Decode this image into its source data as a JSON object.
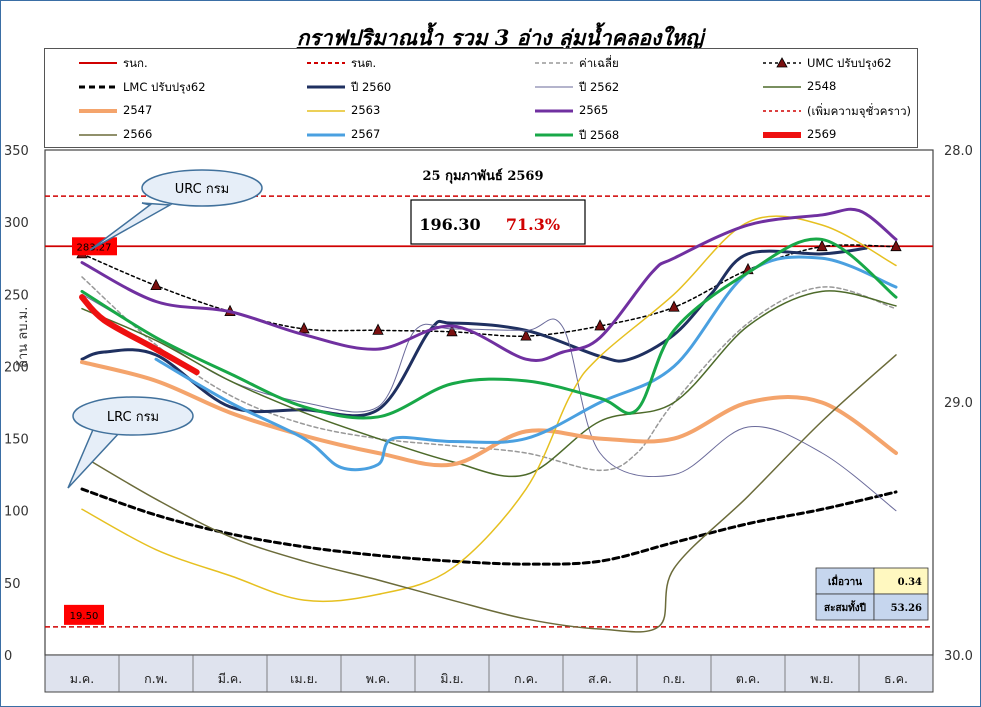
{
  "title": "กราฟปริมาณน้ำ รวม 3 อ่าง ลุ่มน้ำคลองใหญ่",
  "legend": [
    {
      "name": "รนก.",
      "color": "#d00000",
      "dash": "",
      "width": 2,
      "marker": ""
    },
    {
      "name": "รนต.",
      "color": "#d00000",
      "dash": "4,3",
      "width": 2,
      "marker": ""
    },
    {
      "name": "ค่าเฉลี่ย",
      "color": "#999999",
      "dash": "4,3",
      "width": 1.5,
      "marker": ""
    },
    {
      "name": "UMC ปรับปรุง62",
      "color": "#000000",
      "dash": "3,3",
      "width": 1.5,
      "marker": "triangle"
    },
    {
      "name": "LMC ปรับปรุง62",
      "color": "#000000",
      "dash": "6,4",
      "width": 3,
      "marker": ""
    },
    {
      "name": "ปี 2560",
      "color": "#1f3060",
      "dash": "",
      "width": 3,
      "marker": ""
    },
    {
      "name": "ปี 2562",
      "color": "#6a6a9a",
      "dash": "",
      "width": 1,
      "marker": ""
    },
    {
      "name": "2548",
      "color": "#4d6a2a",
      "dash": "",
      "width": 1.5,
      "marker": ""
    },
    {
      "name": "2547",
      "color": "#f4a46c",
      "dash": "",
      "width": 4,
      "marker": ""
    },
    {
      "name": "2563",
      "color": "#e6c020",
      "dash": "",
      "width": 1.5,
      "marker": ""
    },
    {
      "name": "2565",
      "color": "#7030a0",
      "dash": "",
      "width": 3,
      "marker": ""
    },
    {
      "name": "(เพิ่มความจุชั่วคราว)",
      "color": "#d00000",
      "dash": "3,3",
      "width": 1.5,
      "marker": ""
    },
    {
      "name": "2566",
      "color": "#6b6b3a",
      "dash": "",
      "width": 1.5,
      "marker": ""
    },
    {
      "name": "2567",
      "color": "#4aa0e0",
      "dash": "",
      "width": 3,
      "marker": ""
    },
    {
      "name": "ปี 2568",
      "color": "#18a848",
      "dash": "",
      "width": 3,
      "marker": ""
    },
    {
      "name": "2569",
      "color": "#ee1010",
      "dash": "",
      "width": 6,
      "marker": ""
    }
  ],
  "annotations": {
    "date": "25 กุมภาพันธ์ 2569",
    "volume": "196.30",
    "percent": "71.3%",
    "urc": "URC กรม",
    "lrc": "LRC กรม",
    "upper_label": "283.27",
    "lower_label": "19.50",
    "ylabel_left": "ล้าน ลบ.ม.",
    "table": [
      {
        "label": "เมื่อวาน",
        "value": "0.34"
      },
      {
        "label": "สะสมทั้งปี",
        "value": "53.26"
      }
    ]
  },
  "chart_data": {
    "type": "line",
    "categories": [
      "ม.ค.",
      "ก.พ.",
      "มี.ค.",
      "เม.ย.",
      "พ.ค.",
      "มิ.ย.",
      "ก.ค.",
      "ส.ค.",
      "ก.ย.",
      "ต.ค.",
      "พ.ย.",
      "ธ.ค."
    ],
    "y_left": {
      "min": 0,
      "max": 350,
      "ticks": [
        0,
        50,
        100,
        150,
        200,
        250,
        300,
        350
      ]
    },
    "y_right": {
      "ticks": [
        "28.0",
        "29.0",
        "30.0"
      ]
    },
    "grid": false,
    "reference_lines": {
      "upper_rule": 283.27,
      "lower_rule": 19.5,
      "temporary_capacity": 318
    },
    "series": [
      {
        "name": "ค่าเฉลี่ย",
        "color": "#999999",
        "dash": "4,3",
        "width": 1.5,
        "values": [
          [
            0,
            262
          ],
          [
            1,
            215
          ],
          [
            2,
            180
          ],
          [
            3,
            160
          ],
          [
            4,
            150
          ],
          [
            5,
            145
          ],
          [
            6,
            140
          ],
          [
            7,
            128
          ],
          [
            7.5,
            140
          ],
          [
            8,
            175
          ],
          [
            9,
            230
          ],
          [
            10,
            255
          ],
          [
            11,
            240
          ]
        ]
      },
      {
        "name": "UMC ปรับปรุง62",
        "color": "#000000",
        "dash": "3,3",
        "width": 1.5,
        "marker": "triangle",
        "values": [
          [
            0,
            278
          ],
          [
            1,
            256
          ],
          [
            2,
            238
          ],
          [
            3,
            226
          ],
          [
            4,
            225
          ],
          [
            5,
            224
          ],
          [
            6,
            221
          ],
          [
            7,
            228
          ],
          [
            8,
            241
          ],
          [
            9,
            267
          ],
          [
            10,
            283
          ],
          [
            11,
            283
          ]
        ]
      },
      {
        "name": "LMC ปรับปรุง62",
        "color": "#000000",
        "dash": "6,4",
        "width": 3,
        "values": [
          [
            0,
            115
          ],
          [
            1,
            97
          ],
          [
            2,
            84
          ],
          [
            3,
            75
          ],
          [
            4,
            69
          ],
          [
            5,
            65
          ],
          [
            6,
            63
          ],
          [
            7,
            65
          ],
          [
            8,
            78
          ],
          [
            9,
            91
          ],
          [
            10,
            101
          ],
          [
            11,
            113
          ]
        ]
      },
      {
        "name": "ปี 2560",
        "color": "#1f3060",
        "width": 3,
        "values": [
          [
            0,
            205
          ],
          [
            0.3,
            210
          ],
          [
            1,
            208
          ],
          [
            2,
            172
          ],
          [
            3,
            170
          ],
          [
            4,
            170
          ],
          [
            4.7,
            225
          ],
          [
            5,
            230
          ],
          [
            6,
            225
          ],
          [
            7,
            207
          ],
          [
            7.4,
            205
          ],
          [
            8,
            222
          ],
          [
            8.5,
            250
          ],
          [
            9,
            278
          ],
          [
            10,
            278
          ],
          [
            10.6,
            282
          ]
        ]
      },
      {
        "name": "ปี 2562",
        "color": "#6a6a9a",
        "width": 1,
        "values": [
          [
            0,
            250
          ],
          [
            1,
            220
          ],
          [
            2,
            190
          ],
          [
            3,
            175
          ],
          [
            4,
            172
          ],
          [
            4.5,
            225
          ],
          [
            5,
            226
          ],
          [
            6,
            225
          ],
          [
            6.5,
            227
          ],
          [
            7,
            140
          ],
          [
            8,
            125
          ],
          [
            9,
            158
          ],
          [
            10,
            140
          ],
          [
            11,
            100
          ]
        ]
      },
      {
        "name": "2548",
        "color": "#4d6a2a",
        "width": 1.5,
        "values": [
          [
            0,
            240
          ],
          [
            1,
            218
          ],
          [
            2,
            190
          ],
          [
            3,
            168
          ],
          [
            4,
            150
          ],
          [
            5,
            134
          ],
          [
            6,
            125
          ],
          [
            7,
            162
          ],
          [
            8,
            175
          ],
          [
            9,
            228
          ],
          [
            10,
            252
          ],
          [
            11,
            242
          ]
        ]
      },
      {
        "name": "2547",
        "color": "#f4a46c",
        "width": 4,
        "values": [
          [
            0,
            203
          ],
          [
            1,
            190
          ],
          [
            2,
            168
          ],
          [
            3,
            152
          ],
          [
            4,
            140
          ],
          [
            5,
            132
          ],
          [
            6,
            155
          ],
          [
            7,
            150
          ],
          [
            8,
            150
          ],
          [
            9,
            175
          ],
          [
            10,
            175
          ],
          [
            11,
            140
          ]
        ]
      },
      {
        "name": "2563",
        "color": "#e6c020",
        "width": 1.5,
        "values": [
          [
            0,
            101
          ],
          [
            1,
            73
          ],
          [
            2,
            55
          ],
          [
            3,
            38
          ],
          [
            4,
            42
          ],
          [
            5,
            60
          ],
          [
            6,
            115
          ],
          [
            6.6,
            180
          ],
          [
            7,
            207
          ],
          [
            8,
            250
          ],
          [
            9,
            300
          ],
          [
            10,
            298
          ],
          [
            11,
            270
          ]
        ]
      },
      {
        "name": "2565",
        "color": "#7030a0",
        "width": 3,
        "values": [
          [
            0,
            272
          ],
          [
            1,
            245
          ],
          [
            2,
            238
          ],
          [
            3,
            222
          ],
          [
            4,
            212
          ],
          [
            5,
            228
          ],
          [
            6,
            205
          ],
          [
            6.5,
            210
          ],
          [
            7,
            220
          ],
          [
            7.7,
            265
          ],
          [
            8,
            275
          ],
          [
            9,
            298
          ],
          [
            10,
            305
          ],
          [
            10.5,
            308
          ],
          [
            11,
            288
          ]
        ]
      },
      {
        "name": "2566",
        "color": "#6b6b3a",
        "width": 1.5,
        "values": [
          [
            0,
            138
          ],
          [
            1,
            108
          ],
          [
            2,
            82
          ],
          [
            3,
            65
          ],
          [
            4,
            52
          ],
          [
            5,
            38
          ],
          [
            6,
            25
          ],
          [
            7,
            18
          ],
          [
            7.8,
            20
          ],
          [
            8,
            60
          ],
          [
            9,
            110
          ],
          [
            10,
            162
          ],
          [
            11,
            208
          ]
        ]
      },
      {
        "name": "2567",
        "color": "#4aa0e0",
        "width": 3,
        "values": [
          [
            1,
            205
          ],
          [
            2,
            175
          ],
          [
            3,
            150
          ],
          [
            3.5,
            130
          ],
          [
            4,
            132
          ],
          [
            4.2,
            150
          ],
          [
            5,
            148
          ],
          [
            6,
            150
          ],
          [
            7,
            175
          ],
          [
            8,
            200
          ],
          [
            9,
            265
          ],
          [
            10,
            275
          ],
          [
            11,
            255
          ]
        ]
      },
      {
        "name": "ปี 2568",
        "color": "#18a848",
        "width": 3,
        "values": [
          [
            0,
            252
          ],
          [
            1,
            220
          ],
          [
            2,
            195
          ],
          [
            3,
            172
          ],
          [
            4,
            165
          ],
          [
            5,
            188
          ],
          [
            6,
            190
          ],
          [
            7,
            178
          ],
          [
            7.5,
            170
          ],
          [
            8,
            225
          ],
          [
            9,
            265
          ],
          [
            10,
            288
          ],
          [
            11,
            248
          ]
        ]
      },
      {
        "name": "2569",
        "color": "#ee1010",
        "width": 6,
        "values": [
          [
            0,
            248
          ],
          [
            0.3,
            232
          ],
          [
            1,
            212
          ],
          [
            1.55,
            196
          ]
        ]
      }
    ]
  }
}
